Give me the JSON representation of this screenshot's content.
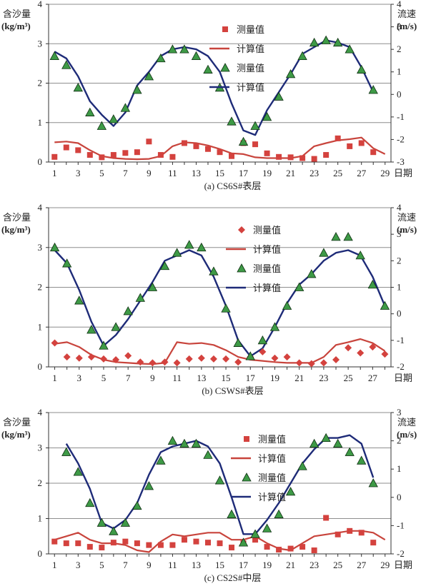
{
  "chart_data": [
    {
      "type": "line",
      "caption": "(a)  CS6S#表层",
      "xlabel": "日期",
      "ylabel_left": [
        "含沙量",
        "(kg/m³)"
      ],
      "ylabel_right": [
        "流速",
        "(m/s)"
      ],
      "ylim_left": [
        0,
        4
      ],
      "ylim_right": [
        -3,
        4
      ],
      "xlim": [
        0.5,
        29.5
      ],
      "x_ticks": [
        1,
        3,
        5,
        7,
        9,
        11,
        13,
        15,
        17,
        19,
        21,
        23,
        25,
        27,
        29
      ],
      "y_ticks_left": [
        0,
        1,
        2,
        3,
        4
      ],
      "y_ticks_right": [
        -3,
        -2,
        -1,
        0,
        1,
        2,
        3,
        4
      ],
      "legend": [
        "测量值",
        "计算值",
        "测量值",
        "计算值"
      ],
      "legend_position": "top-center",
      "marker_shape": "square",
      "series": [
        {
          "kind": "measured-sediment",
          "axis": "left",
          "x": [
            1,
            2,
            3,
            4,
            5,
            6,
            7,
            8,
            9,
            10,
            11,
            12,
            13,
            14,
            15,
            16,
            17,
            18,
            19,
            20,
            21,
            22,
            23,
            24,
            25,
            26,
            27,
            28
          ],
          "y": [
            0.13,
            0.37,
            0.3,
            0.18,
            0.12,
            0.18,
            0.23,
            0.25,
            0.52,
            0.18,
            0.13,
            0.48,
            0.4,
            0.33,
            0.25,
            0.15,
            0.48,
            0.45,
            0.22,
            0.13,
            0.12,
            0.1,
            0.08,
            0.18,
            0.6,
            0.4,
            0.48,
            0.25
          ]
        },
        {
          "kind": "computed-sediment",
          "axis": "left",
          "x": [
            1,
            2,
            3,
            4,
            5,
            6,
            7,
            8,
            9,
            10,
            11,
            12,
            13,
            14,
            15,
            16,
            17,
            18,
            19,
            20,
            21,
            22,
            23,
            24,
            25,
            26,
            27,
            28,
            29
          ],
          "y": [
            0.5,
            0.52,
            0.48,
            0.3,
            0.15,
            0.1,
            0.08,
            0.07,
            0.08,
            0.15,
            0.4,
            0.5,
            0.48,
            0.42,
            0.33,
            0.22,
            0.2,
            0.12,
            0.1,
            0.1,
            0.1,
            0.15,
            0.4,
            0.48,
            0.55,
            0.58,
            0.62,
            0.35,
            0.2
          ]
        },
        {
          "kind": "measured-velocity",
          "axis": "right",
          "x": [
            1,
            2,
            3,
            4,
            5,
            6,
            7,
            8,
            9,
            10,
            11,
            12,
            13,
            14,
            15,
            16,
            17,
            18,
            19,
            20,
            21,
            22,
            23,
            24,
            25,
            26,
            27,
            28
          ],
          "y": [
            1.7,
            1.3,
            0.3,
            -0.8,
            -1.4,
            -1.1,
            -0.6,
            0.2,
            0.8,
            1.6,
            2.0,
            2.0,
            1.7,
            1.1,
            0.3,
            -1.2,
            -2.1,
            -1.4,
            -1.0,
            -0.1,
            0.9,
            1.7,
            2.3,
            2.4,
            2.3,
            2.0,
            1.1,
            0.2
          ]
        },
        {
          "kind": "computed-velocity",
          "axis": "right",
          "x": [
            1,
            2,
            3,
            4,
            5,
            6,
            7,
            8,
            9,
            10,
            11,
            12,
            13,
            14,
            15,
            16,
            17,
            18,
            19,
            20,
            21,
            22,
            23,
            24,
            25,
            26,
            27,
            28
          ],
          "y": [
            1.9,
            1.6,
            0.8,
            -0.3,
            -0.9,
            -1.4,
            -0.8,
            0.4,
            1.0,
            1.7,
            2.0,
            2.1,
            2.0,
            1.7,
            1.0,
            -0.4,
            -1.6,
            -1.8,
            -0.7,
            0.1,
            0.9,
            1.8,
            2.1,
            2.4,
            2.3,
            2.1,
            1.2,
            0.1
          ]
        }
      ]
    },
    {
      "type": "line",
      "caption": "(b)  CSWS#表层",
      "xlabel": "日期",
      "ylabel_left": [
        "含沙量",
        "(kg/m³)"
      ],
      "ylabel_right": [
        "流速",
        "(m/s)"
      ],
      "ylim_left": [
        0,
        4
      ],
      "ylim_right": [
        -2,
        4
      ],
      "xlim": [
        0.5,
        28.5
      ],
      "x_ticks": [
        1,
        3,
        5,
        7,
        9,
        11,
        13,
        15,
        17,
        19,
        21,
        23,
        25,
        27
      ],
      "y_ticks_left": [
        0,
        1,
        2,
        3,
        4
      ],
      "y_ticks_right": [
        -2,
        -1,
        0,
        1,
        2,
        3,
        4
      ],
      "legend": [
        "测量值",
        "计算值",
        "测量值",
        "计算值"
      ],
      "legend_position": "top-center",
      "marker_shape": "diamond",
      "series": [
        {
          "kind": "measured-sediment",
          "axis": "left",
          "x": [
            1,
            2,
            3,
            4,
            5,
            6,
            7,
            8,
            9,
            10,
            11,
            12,
            13,
            14,
            15,
            16,
            17,
            18,
            19,
            20,
            21,
            22,
            23,
            24,
            25,
            26,
            27,
            28
          ],
          "y": [
            0.6,
            0.25,
            0.22,
            0.25,
            0.2,
            0.18,
            0.28,
            0.12,
            0.1,
            0.12,
            0.1,
            0.2,
            0.22,
            0.2,
            0.2,
            0.12,
            0.25,
            0.38,
            0.22,
            0.25,
            0.1,
            0.08,
            0.1,
            0.18,
            0.48,
            0.35,
            0.5,
            0.32
          ]
        },
        {
          "kind": "computed-sediment",
          "axis": "left",
          "x": [
            1,
            2,
            3,
            4,
            5,
            6,
            7,
            8,
            9,
            10,
            11,
            12,
            13,
            14,
            15,
            16,
            17,
            18,
            19,
            20,
            21,
            22,
            23,
            24,
            25,
            26,
            27,
            28
          ],
          "y": [
            0.58,
            0.62,
            0.5,
            0.3,
            0.18,
            0.12,
            0.1,
            0.08,
            0.07,
            0.1,
            0.62,
            0.58,
            0.6,
            0.55,
            0.42,
            0.25,
            0.18,
            0.15,
            0.12,
            0.1,
            0.1,
            0.1,
            0.25,
            0.55,
            0.62,
            0.7,
            0.6,
            0.4
          ]
        },
        {
          "kind": "measured-velocity",
          "axis": "right",
          "x": [
            1,
            2,
            3,
            4,
            5,
            6,
            7,
            8,
            9,
            10,
            11,
            12,
            13,
            14,
            15,
            16,
            17,
            18,
            19,
            20,
            21,
            22,
            23,
            24,
            25,
            26,
            27,
            28
          ],
          "y": [
            2.5,
            1.9,
            0.5,
            -0.6,
            -1.2,
            -0.5,
            0.1,
            0.6,
            1.0,
            1.8,
            2.3,
            2.6,
            2.5,
            1.6,
            0.2,
            -1.1,
            -1.6,
            -1.0,
            -0.5,
            0.3,
            1.0,
            1.5,
            2.3,
            2.9,
            2.9,
            2.2,
            1.1,
            0.3
          ]
        },
        {
          "kind": "computed-velocity",
          "axis": "right",
          "x": [
            1,
            2,
            3,
            4,
            5,
            6,
            7,
            8,
            9,
            10,
            11,
            12,
            13,
            14,
            15,
            16,
            17,
            18,
            19,
            20,
            21,
            22,
            23,
            24,
            25,
            26,
            27,
            28
          ],
          "y": [
            2.4,
            1.9,
            0.9,
            -0.3,
            -1.2,
            -0.8,
            -0.2,
            0.5,
            1.2,
            2.0,
            2.2,
            2.4,
            2.2,
            1.4,
            0.3,
            -1.0,
            -1.6,
            -1.3,
            -0.5,
            0.4,
            1.1,
            1.5,
            2.0,
            2.3,
            2.4,
            2.2,
            1.4,
            0.3
          ]
        }
      ]
    },
    {
      "type": "line",
      "caption": "(c)  CS2S#中层",
      "xlabel": "日期",
      "ylabel_left": [
        "含沙量",
        "(kg/m³)"
      ],
      "ylabel_right": [
        "流速",
        "(m/s)"
      ],
      "ylim_left": [
        0,
        4
      ],
      "ylim_right": [
        -2,
        3
      ],
      "xlim": [
        0.5,
        29.5
      ],
      "x_ticks": [
        1,
        3,
        5,
        7,
        9,
        11,
        13,
        15,
        17,
        19,
        21,
        23,
        25,
        27,
        29
      ],
      "y_ticks_left": [
        0,
        1,
        2,
        3,
        4
      ],
      "y_ticks_right": [
        -2,
        -1,
        0,
        1,
        2,
        3
      ],
      "legend": [
        "测量值",
        "计算值",
        "测量值",
        "计算值"
      ],
      "legend_position": "top-center",
      "marker_shape": "square",
      "series": [
        {
          "kind": "measured-sediment",
          "axis": "left",
          "x": [
            1,
            2,
            3,
            4,
            5,
            6,
            7,
            8,
            9,
            10,
            11,
            12,
            13,
            14,
            15,
            16,
            17,
            18,
            19,
            20,
            21,
            22,
            23,
            24,
            25,
            26,
            27,
            28
          ],
          "y": [
            0.35,
            0.3,
            0.3,
            0.2,
            0.18,
            0.32,
            0.35,
            0.3,
            0.25,
            0.25,
            0.25,
            0.4,
            0.35,
            0.32,
            0.3,
            0.18,
            0.3,
            0.4,
            0.2,
            0.12,
            0.15,
            0.2,
            0.1,
            1.02,
            0.55,
            0.65,
            0.6,
            0.32
          ]
        },
        {
          "kind": "computed-sediment",
          "axis": "left",
          "x": [
            1,
            2,
            3,
            4,
            5,
            6,
            7,
            8,
            9,
            10,
            11,
            12,
            13,
            14,
            15,
            16,
            17,
            18,
            19,
            20,
            21,
            22,
            23,
            24,
            25,
            26,
            27,
            28,
            29
          ],
          "y": [
            0.4,
            0.5,
            0.6,
            0.4,
            0.3,
            0.3,
            0.25,
            0.1,
            0.05,
            0.35,
            0.55,
            0.5,
            0.55,
            0.6,
            0.6,
            0.4,
            0.4,
            0.5,
            0.3,
            0.15,
            0.1,
            0.3,
            0.5,
            0.55,
            0.6,
            0.65,
            0.65,
            0.6,
            0.4
          ]
        },
        {
          "kind": "measured-velocity",
          "axis": "right",
          "x": [
            2,
            3,
            4,
            5,
            6,
            7,
            8,
            9,
            10,
            11,
            12,
            13,
            14,
            15,
            16,
            17,
            18,
            19,
            20,
            21,
            22,
            23,
            24,
            25,
            26,
            27,
            28
          ],
          "y": [
            1.6,
            0.9,
            -0.2,
            -0.9,
            -1.2,
            -0.9,
            -0.3,
            0.4,
            1.3,
            2.0,
            1.9,
            1.9,
            1.5,
            0.6,
            -0.6,
            -1.6,
            -1.3,
            -1.1,
            -0.6,
            0.2,
            1.1,
            1.9,
            2.1,
            1.9,
            1.6,
            1.3,
            0.5
          ]
        },
        {
          "kind": "computed-velocity",
          "axis": "right",
          "x": [
            2,
            3,
            4,
            5,
            6,
            7,
            8,
            9,
            10,
            11,
            12,
            13,
            14,
            15,
            16,
            17,
            18,
            19,
            20,
            21,
            22,
            23,
            24,
            25,
            26,
            27,
            28
          ],
          "y": [
            1.9,
            1.2,
            0.3,
            -0.9,
            -1.1,
            -0.8,
            -0.2,
            0.8,
            1.6,
            1.8,
            1.9,
            2.0,
            1.8,
            1.2,
            0.0,
            -1.3,
            -1.3,
            -0.8,
            -0.2,
            0.5,
            1.2,
            1.7,
            2.1,
            2.1,
            2.2,
            1.9,
            0.7
          ]
        }
      ]
    }
  ],
  "colors": {
    "computed_sediment": "#c8443c",
    "computed_velocity": "#1e2b78",
    "measured_square": "#d4423e",
    "measured_diamond": "#d4423e",
    "triangle_fill": "#3e9a46",
    "triangle_edge": "#0f2f12",
    "grid": "#8e8e8e",
    "axis": "#333333",
    "text": "#222222"
  }
}
